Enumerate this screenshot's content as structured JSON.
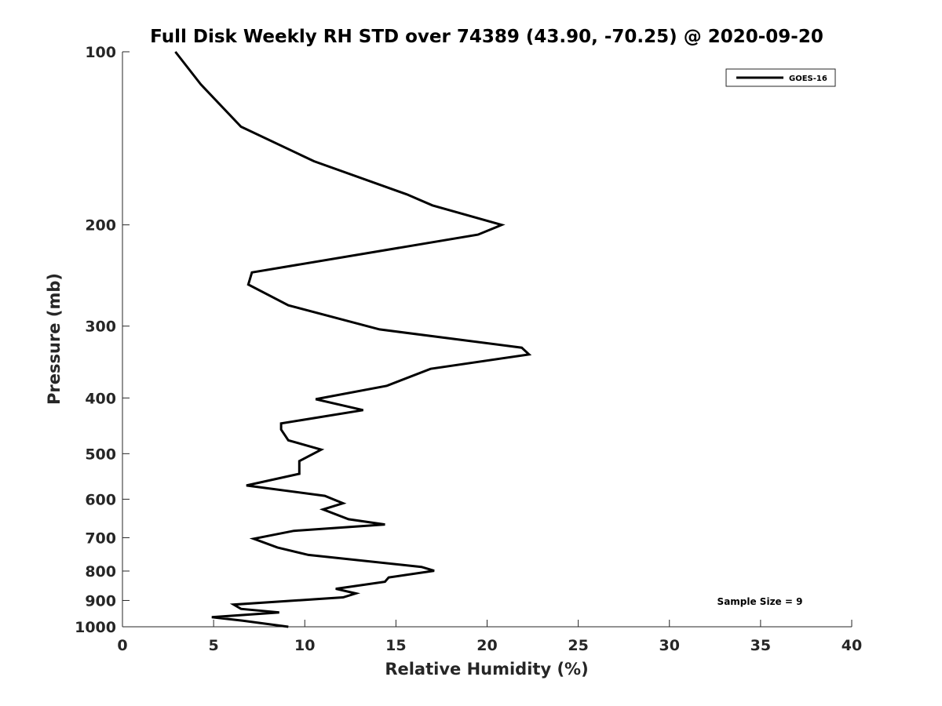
{
  "chart_data": {
    "type": "line",
    "title": "Full Disk Weekly RH STD over 74389 (43.90, -70.25) @ 2020-09-20",
    "xlabel": "Relative Humidity (%)",
    "ylabel": "Pressure (mb)",
    "xlim": [
      0,
      40
    ],
    "ylim": [
      100,
      1000
    ],
    "y_scale": "log",
    "y_reversed": true,
    "grid": false,
    "legend_position": "top-right",
    "x_ticks": [
      0,
      5,
      10,
      15,
      20,
      25,
      30,
      35,
      40
    ],
    "y_ticks": [
      100,
      200,
      300,
      400,
      500,
      600,
      700,
      800,
      900,
      1000
    ],
    "series": [
      {
        "name": "GOES-16",
        "color": "#000000",
        "x": [
          2.9,
          4.3,
          6.5,
          10.5,
          15.6,
          17.0,
          20.8,
          19.5,
          7.1,
          6.9,
          9.1,
          14.1,
          21.9,
          22.3,
          16.9,
          14.5,
          10.6,
          13.2,
          8.7,
          8.7,
          9.1,
          10.9,
          9.7,
          9.7,
          6.8,
          11.1,
          12.1,
          11.0,
          12.4,
          14.4,
          9.4,
          7.2,
          8.5,
          10.2,
          16.4,
          17.1,
          14.6,
          14.4,
          11.7,
          12.8,
          12.1,
          6.1,
          6.5,
          8.6,
          4.9,
          6.6,
          9.1
        ],
        "y": [
          100,
          114,
          135,
          155,
          177,
          185,
          200,
          208,
          242,
          254,
          276,
          304,
          327,
          336,
          356,
          381,
          402,
          420,
          443,
          454,
          474,
          492,
          515,
          542,
          568,
          592,
          610,
          625,
          650,
          664,
          681,
          703,
          728,
          750,
          787,
          799,
          821,
          835,
          859,
          875,
          889,
          915,
          931,
          944,
          962,
          976,
          1000
        ]
      }
    ],
    "annotations": [
      "Sample Size = 9"
    ]
  }
}
